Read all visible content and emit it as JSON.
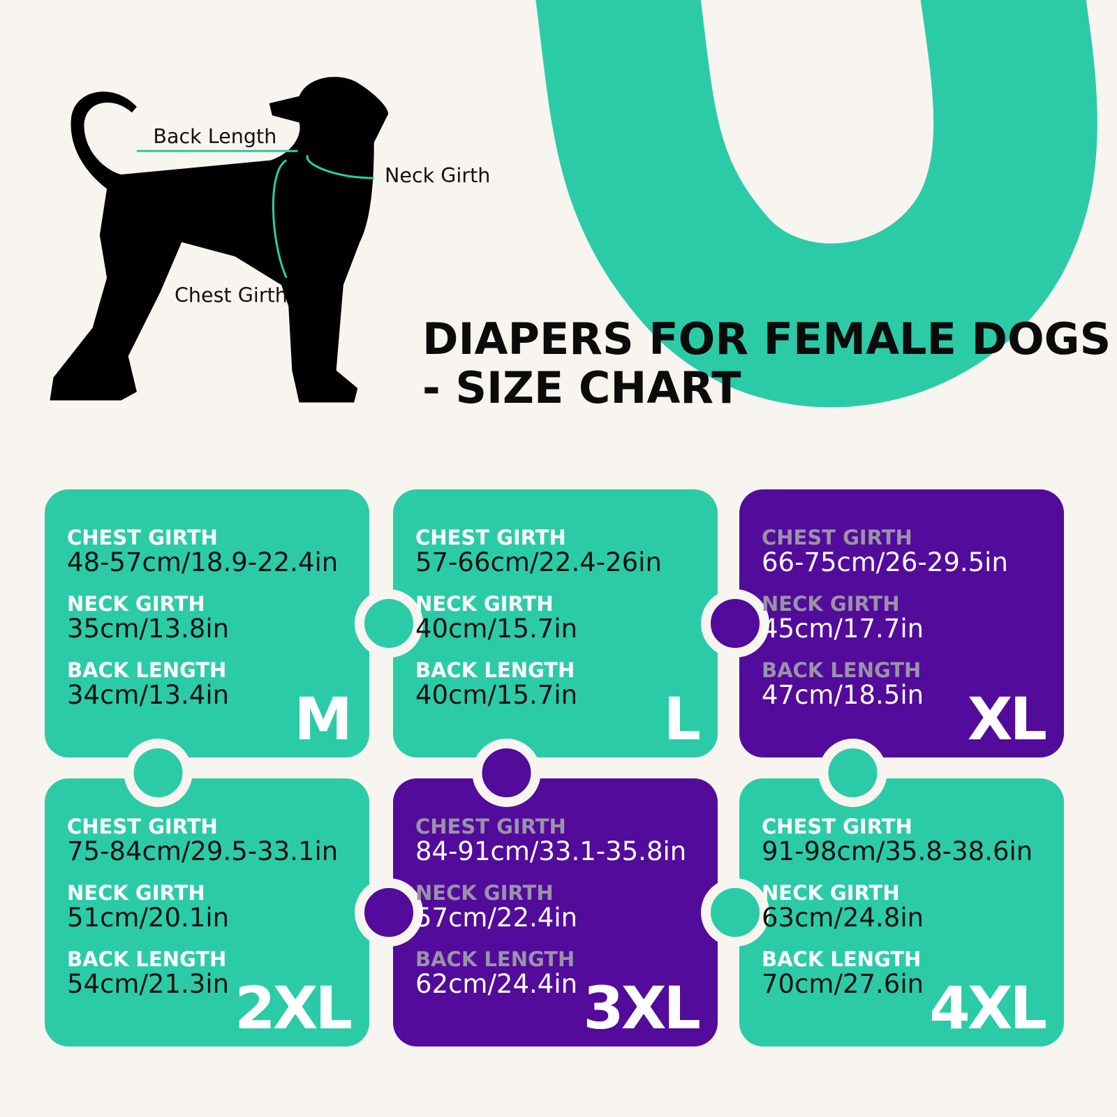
{
  "title": {
    "line1": "DIAPERS FOR FEMALE DOGS",
    "line2": "- SIZE CHART"
  },
  "diagram": {
    "back_length": "Back Length",
    "neck_girth": "Neck Girth",
    "chest_girth": "Chest Girth"
  },
  "cards": [
    {
      "size": "M",
      "color": "#2ccba8",
      "chest_label": "CHEST GIRTH",
      "chest": "48-57cm/18.9-22.4in",
      "neck_label": "NECK GIRTH",
      "neck": "35cm/13.8in",
      "back_label": "BACK LENGTH",
      "back": "34cm/13.4in"
    },
    {
      "size": "L",
      "color": "#2ccba8",
      "chest_label": "CHEST GIRTH",
      "chest": "57-66cm/22.4-26in",
      "neck_label": "NECK GIRTH",
      "neck": "40cm/15.7in",
      "back_label": "BACK LENGTH",
      "back": "40cm/15.7in"
    },
    {
      "size": "XL",
      "color": "#520b9b",
      "chest_label": "CHEST GIRTH",
      "chest": "66-75cm/26-29.5in",
      "neck_label": "NECK GIRTH",
      "neck": "45cm/17.7in",
      "back_label": "BACK LENGTH",
      "back": "47cm/18.5in"
    },
    {
      "size": "2XL",
      "color": "#2ccba8",
      "chest_label": "CHEST GIRTH",
      "chest": "75-84cm/29.5-33.1in",
      "neck_label": "NECK GIRTH",
      "neck": "51cm/20.1in",
      "back_label": "BACK LENGTH",
      "back": "54cm/21.3in"
    },
    {
      "size": "3XL",
      "color": "#520b9b",
      "chest_label": "CHEST GIRTH",
      "chest": "84-91cm/33.1-35.8in",
      "neck_label": "NECK GIRTH",
      "neck": "57cm/22.4in",
      "back_label": "BACK LENGTH",
      "back": "62cm/24.4in"
    },
    {
      "size": "4XL",
      "color": "#2ccba8",
      "chest_label": "CHEST GIRTH",
      "chest": "91-98cm/35.8-38.6in",
      "neck_label": "NECK GIRTH",
      "neck": "63cm/24.8in",
      "back_label": "BACK LENGTH",
      "back": "70cm/27.6in"
    }
  ]
}
